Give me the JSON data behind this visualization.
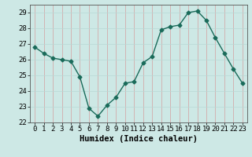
{
  "x": [
    0,
    1,
    2,
    3,
    4,
    5,
    6,
    7,
    8,
    9,
    10,
    11,
    12,
    13,
    14,
    15,
    16,
    17,
    18,
    19,
    20,
    21,
    22,
    23
  ],
  "y": [
    26.8,
    26.4,
    26.1,
    26.0,
    25.9,
    24.9,
    22.9,
    22.4,
    23.1,
    23.6,
    24.5,
    24.6,
    25.8,
    26.2,
    27.9,
    28.1,
    28.2,
    29.0,
    29.1,
    28.5,
    27.4,
    26.4,
    25.4,
    24.5
  ],
  "xlim": [
    -0.5,
    23.5
  ],
  "ylim": [
    22,
    29.5
  ],
  "yticks": [
    22,
    23,
    24,
    25,
    26,
    27,
    28,
    29
  ],
  "xticks": [
    0,
    1,
    2,
    3,
    4,
    5,
    6,
    7,
    8,
    9,
    10,
    11,
    12,
    13,
    14,
    15,
    16,
    17,
    18,
    19,
    20,
    21,
    22,
    23
  ],
  "xlabel": "Humidex (Indice chaleur)",
  "line_color": "#1a6b5a",
  "marker": "D",
  "marker_size": 2.5,
  "bg_color": "#cde8e5",
  "grid_color_h": "#b8d8d5",
  "grid_color_v": "#d4a0a0",
  "tick_label_fontsize": 6.5,
  "xlabel_fontsize": 7.5,
  "title": ""
}
